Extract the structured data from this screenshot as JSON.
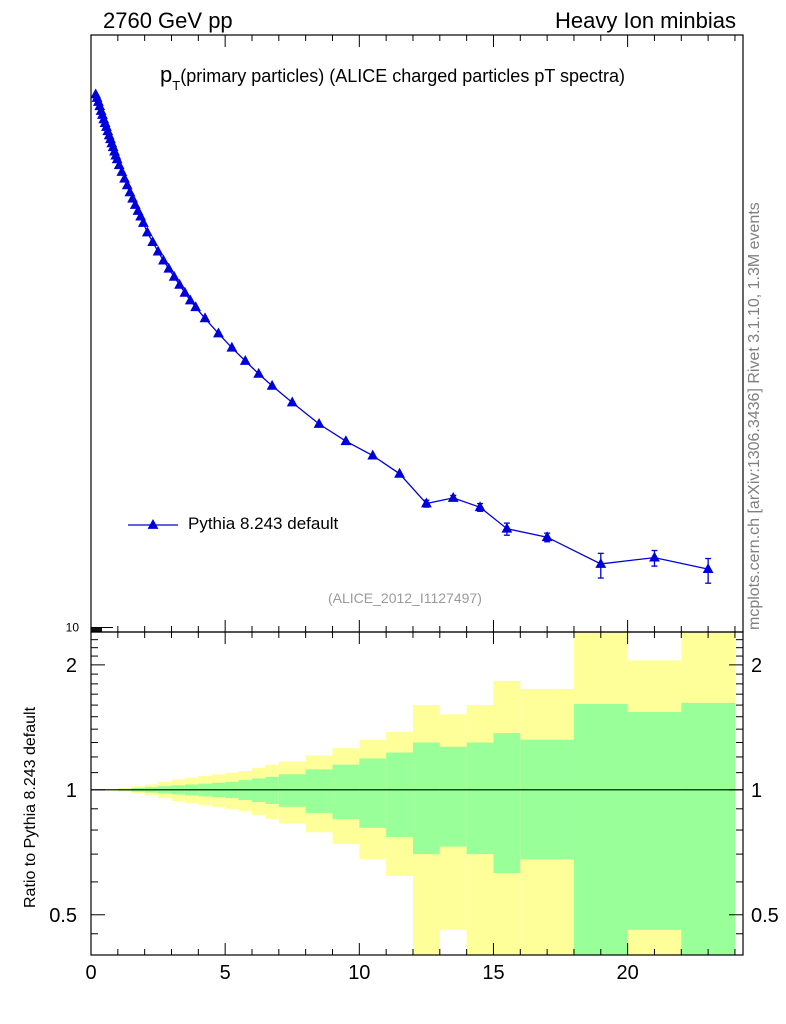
{
  "header": {
    "left": "2760 GeV pp",
    "right": "Heavy Ion minbias"
  },
  "title_main": "p",
  "title_sub": "T",
  "title_rest": "(primary particles) (ALICE charged particles pT spectra)",
  "side_label": "mcplots.cern.ch [arXiv:1306.3436]      Rivet 3.1.10,  1.3M events",
  "analysis_id": "(ALICE_2012_I1127497)",
  "ratio_ylabel": "Ratio to Pythia 8.243 default",
  "legend": {
    "label": "Pythia 8.243 default"
  },
  "colors": {
    "mc": "#0000dd",
    "band_outer": "#ffff99",
    "band_inner": "#99ff99"
  },
  "chart_data": [
    {
      "type": "line",
      "title": "pT(primary particles) (ALICE charged particles pT spectra)",
      "xlim": [
        0,
        24.3
      ],
      "ylim": [
        9,
        10000000
      ],
      "yscale": "log",
      "ytick_labels": [
        "10"
      ],
      "legend_position": "lower-left",
      "series": [
        {
          "name": "Pythia 8.243 default",
          "x": [
            0.175,
            0.225,
            0.275,
            0.325,
            0.375,
            0.425,
            0.475,
            0.525,
            0.575,
            0.625,
            0.675,
            0.725,
            0.775,
            0.825,
            0.875,
            0.925,
            0.975,
            1.05,
            1.15,
            1.25,
            1.35,
            1.45,
            1.55,
            1.65,
            1.75,
            1.85,
            1.95,
            2.1,
            2.3,
            2.5,
            2.7,
            2.9,
            3.1,
            3.3,
            3.5,
            3.7,
            3.9,
            4.25,
            4.75,
            5.25,
            5.75,
            6.25,
            6.75,
            7.5,
            8.5,
            9.5,
            10.5,
            11.5,
            12.5,
            13.5,
            14.5,
            15.5,
            17.0,
            19.0,
            21.0,
            23.0
          ],
          "y": [
            2500000,
            2300000,
            2100000,
            1900000,
            1700000,
            1550000,
            1400000,
            1280000,
            1170000,
            1060000,
            960000,
            880000,
            800000,
            730000,
            660000,
            600000,
            550000,
            480000,
            410000,
            350000,
            300000,
            255000,
            220000,
            190000,
            165000,
            145000,
            125000,
            100000,
            80000,
            64000,
            52000,
            43000,
            35500,
            29500,
            24500,
            20500,
            17500,
            13500,
            9500,
            6800,
            5000,
            3700,
            2800,
            1900,
            1150,
            770,
            550,
            360,
            180,
            205,
            165,
            100,
            82,
            44,
            51,
            39
          ],
          "y_err_rel": [
            0,
            0,
            0,
            0,
            0,
            0,
            0,
            0,
            0,
            0,
            0,
            0,
            0,
            0,
            0,
            0,
            0,
            0,
            0,
            0,
            0,
            0,
            0,
            0,
            0,
            0,
            0,
            0,
            0,
            0,
            0,
            0,
            0,
            0,
            0,
            0,
            0,
            0,
            0,
            0,
            0,
            0,
            0,
            0,
            0,
            0,
            0,
            0,
            0.08,
            0.06,
            0.09,
            0.14,
            0.1,
            0.28,
            0.18,
            0.28
          ]
        }
      ]
    },
    {
      "type": "area",
      "ylabel": "Ratio to Pythia 8.243 default",
      "xlim": [
        0,
        24.3
      ],
      "ylim": [
        0.4,
        2.4
      ],
      "yscale": "log",
      "x_ticks": [
        0,
        5,
        10,
        15,
        20
      ],
      "y_ticks": [
        0.5,
        1,
        2
      ],
      "bin_edges": [
        0,
        0.5,
        1,
        1.5,
        2,
        2.5,
        3,
        3.5,
        4,
        4.5,
        5,
        5.5,
        6,
        6.5,
        7,
        8,
        9,
        10,
        11,
        12,
        13,
        14,
        15,
        16,
        18,
        20,
        22,
        24
      ],
      "series": [
        {
          "name": "inner_upper",
          "values": [
            1.0,
            1.0,
            1.005,
            1.01,
            1.015,
            1.02,
            1.025,
            1.03,
            1.035,
            1.04,
            1.045,
            1.055,
            1.065,
            1.075,
            1.09,
            1.12,
            1.15,
            1.19,
            1.23,
            1.3,
            1.27,
            1.3,
            1.37,
            1.32,
            1.61,
            1.54,
            1.62
          ]
        },
        {
          "name": "inner_lower",
          "values": [
            1.0,
            1.0,
            0.995,
            0.99,
            0.985,
            0.98,
            0.975,
            0.97,
            0.965,
            0.96,
            0.955,
            0.945,
            0.935,
            0.925,
            0.91,
            0.88,
            0.85,
            0.81,
            0.77,
            0.7,
            0.73,
            0.7,
            0.63,
            0.68,
            0.39,
            0.46,
            0.38
          ]
        },
        {
          "name": "outer_upper",
          "values": [
            1.0,
            1.005,
            1.01,
            1.02,
            1.03,
            1.045,
            1.06,
            1.07,
            1.08,
            1.09,
            1.1,
            1.11,
            1.13,
            1.15,
            1.17,
            1.21,
            1.26,
            1.32,
            1.38,
            1.6,
            1.52,
            1.6,
            1.83,
            1.75,
            2.4,
            2.05,
            2.4
          ]
        },
        {
          "name": "outer_lower",
          "values": [
            1.0,
            0.995,
            0.99,
            0.98,
            0.97,
            0.955,
            0.94,
            0.93,
            0.92,
            0.91,
            0.9,
            0.89,
            0.87,
            0.85,
            0.83,
            0.79,
            0.74,
            0.68,
            0.62,
            0.4,
            0.46,
            0.4,
            0.4,
            0.4,
            0.4,
            0.4,
            0.4
          ]
        }
      ],
      "reference_line": 1
    }
  ]
}
